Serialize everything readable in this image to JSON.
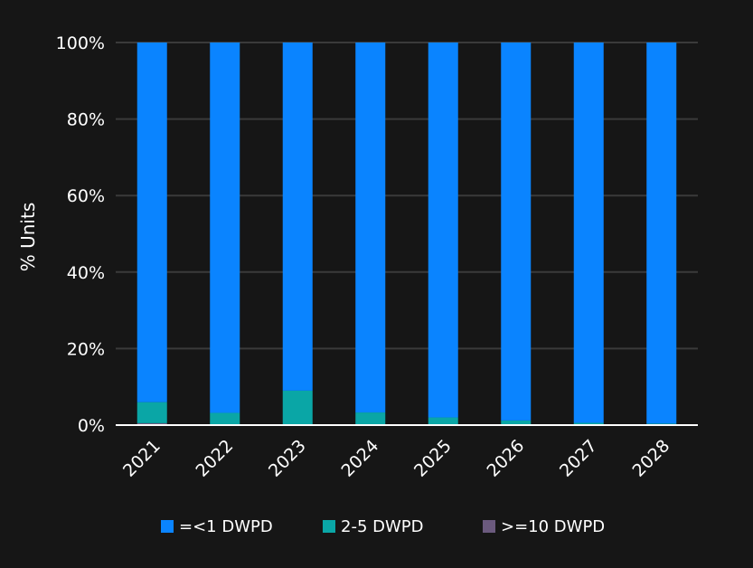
{
  "chart_data": {
    "type": "bar",
    "stacked": true,
    "percent": true,
    "categories": [
      "2021",
      "2022",
      "2023",
      "2024",
      "2025",
      "2026",
      "2027",
      "2028"
    ],
    "series": [
      {
        "name": "=<1 DWPD",
        "color": "#0a84ff",
        "values": [
          94.0,
          96.8,
          91.0,
          96.7,
          98.0,
          98.8,
          99.4,
          99.6
        ]
      },
      {
        "name": "2-5 DWPD",
        "color": "#0aa6a6",
        "values": [
          5.5,
          3.0,
          9.0,
          3.2,
          2.0,
          1.2,
          0.6,
          0.4
        ]
      },
      {
        "name": ">=10 DWPD",
        "color": "#6b5a7e",
        "values": [
          0.5,
          0.2,
          0.0,
          0.1,
          0.0,
          0.0,
          0.0,
          0.0
        ]
      }
    ],
    "ylabel": "% Units",
    "xlabel": "",
    "ylim": [
      0,
      100
    ],
    "yticks": [
      "0%",
      "20%",
      "40%",
      "60%",
      "80%",
      "100%"
    ],
    "grid": true,
    "legend_position": "bottom",
    "colors": {
      "background": "#161616",
      "gridline": "#3a3a3a",
      "axis": "#ffffff",
      "text": "#ffffff"
    }
  }
}
